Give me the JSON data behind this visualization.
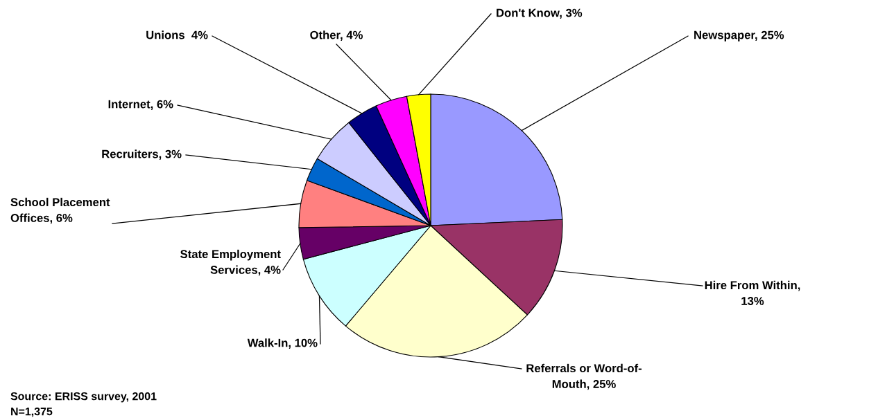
{
  "chart_data": {
    "type": "pie",
    "categories": [
      "Newspaper, 25%",
      "Hire From Within,\n13%",
      "Referrals or Word-of-\nMouth, 25%",
      "Walk-In, 10%",
      "State Employment\nServices, 4%",
      "School Placement\nOffices, 6%",
      "Recruiters, 3%",
      "Internet, 6%",
      "Unions  4%",
      "Other, 4%",
      "Don't Know, 3%"
    ],
    "values": [
      25,
      13,
      25,
      10,
      4,
      6,
      3,
      6,
      4,
      4,
      3
    ],
    "colors": [
      "#9999ff",
      "#993366",
      "#ffffcc",
      "#ccffff",
      "#660066",
      "#ff8080",
      "#0066cc",
      "#ccccff",
      "#000080",
      "#ff00ff",
      "#ffff00"
    ],
    "annotations": [
      "Source: ERISS survey, 2001",
      "N=1,375"
    ]
  }
}
